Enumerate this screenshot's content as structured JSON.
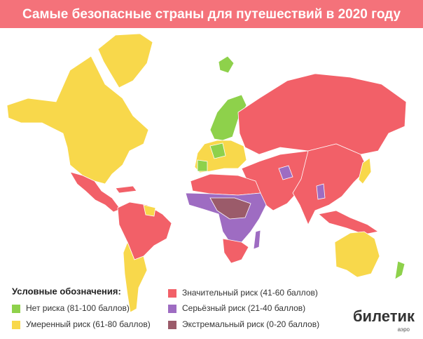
{
  "header": {
    "title": "Самые безопасные страны для путешествий в 2020 году"
  },
  "legend": {
    "title": "Условные обозначения:",
    "items": [
      {
        "label": "Нет риска (81-100 баллов)",
        "color": "#8ed14b"
      },
      {
        "label": "Умеренный риск (61-80 баллов)",
        "color": "#f8d84b"
      },
      {
        "label": "Значительный риск (41-60 баллов)",
        "color": "#f26068"
      },
      {
        "label": "Серьёзный риск (21-40 баллов)",
        "color": "#9e6cc2"
      },
      {
        "label": "Экстремальный риск (0-20 баллов)",
        "color": "#9b5b6a"
      }
    ]
  },
  "logo": {
    "name": "билетик",
    "sub": "аэро"
  }
}
